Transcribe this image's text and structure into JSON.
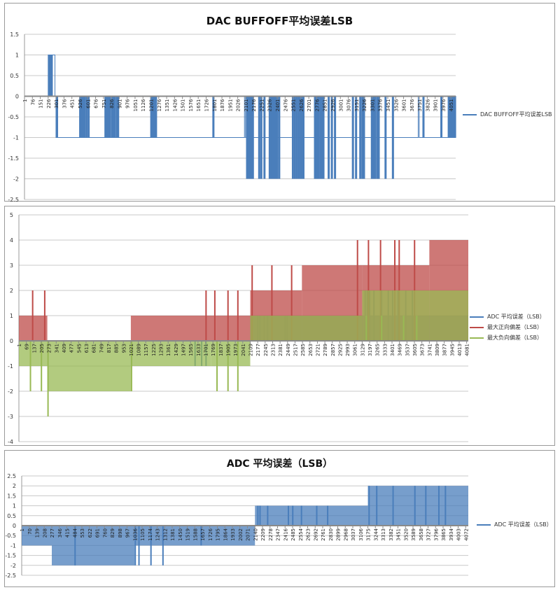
{
  "chart_data": [
    {
      "type": "bar",
      "title": "DAC BUFFOFF平均误差LSB",
      "ylim": [
        -2.5,
        1.5
      ],
      "yticks": [
        -2.5,
        -2,
        -1.5,
        -1,
        -0.5,
        0,
        0.5,
        1,
        1.5
      ],
      "xlim": [
        1,
        4096
      ],
      "xticks": [
        1,
        76,
        151,
        226,
        301,
        376,
        451,
        526,
        601,
        676,
        751,
        826,
        901,
        976,
        1051,
        1126,
        1201,
        1276,
        1351,
        1426,
        1501,
        1576,
        1651,
        1726,
        1801,
        1876,
        1951,
        2026,
        2101,
        2176,
        2251,
        2326,
        2401,
        2476,
        2551,
        2626,
        2701,
        2776,
        2851,
        2926,
        3001,
        3076,
        3151,
        3226,
        3301,
        3376,
        3451,
        3526,
        3601,
        3676,
        3751,
        3826,
        3901,
        3976,
        4051
      ],
      "grid": true,
      "legend_position": "right",
      "series": [
        {
          "name": "DAC BUFFOFF平均误差LSB",
          "color": "#4a7ebb",
          "x": [
            226,
            230,
            240,
            250,
            300,
            520,
            530,
            545,
            560,
            580,
            600,
            760,
            775,
            790,
            800,
            820,
            835,
            850,
            870,
            880,
            1195,
            1210,
            1225,
            1240,
            1785,
            2105,
            2115,
            2130,
            2145,
            2160,
            2220,
            2240,
            2270,
            2320,
            2330,
            2345,
            2360,
            2375,
            2390,
            2410,
            2540,
            2560,
            2580,
            2600,
            2620,
            2640,
            2750,
            2765,
            2780,
            2800,
            2815,
            2830,
            2880,
            2910,
            2940,
            3110,
            3140,
            3180,
            3200,
            3215,
            3290,
            3305,
            3320,
            3340,
            3355,
            3420,
            3490,
            3780,
            3950,
            4020,
            4035,
            4050,
            4065,
            4080
          ],
          "values": [
            1,
            1,
            1,
            1,
            -1,
            -1,
            -1,
            -1,
            -1,
            -1,
            -1,
            -1,
            -1,
            -1,
            -1,
            -1,
            -1,
            -1,
            -1,
            -1,
            -1,
            -1,
            -1,
            -1,
            -1,
            -2,
            -2,
            -2,
            -2,
            -2,
            -2,
            -2,
            -2,
            -2,
            -2,
            -2,
            -2,
            -2,
            -2,
            -2,
            -2,
            -2,
            -2,
            -2,
            -2,
            -2,
            -2,
            -2,
            -2,
            -2,
            -2,
            -2,
            -2,
            -2,
            -2,
            -2,
            -2,
            -2,
            -2,
            -2,
            -2,
            -2,
            -2,
            -2,
            -2,
            -2,
            -2,
            -1,
            -1,
            -1,
            -1,
            -1,
            -1,
            -1
          ],
          "note_levels": [
            {
              "from": 1,
              "to": 225,
              "value": 0
            },
            {
              "from": 226,
              "to": 290,
              "value": 1
            },
            {
              "from": 300,
              "to": 2090,
              "value": -1
            },
            {
              "from": 2100,
              "to": 3740,
              "value": -1
            },
            {
              "from": 3750,
              "to": 4096,
              "value": -1
            }
          ]
        }
      ]
    },
    {
      "type": "bar",
      "title": "",
      "ylim": [
        -4,
        5
      ],
      "yticks": [
        -4,
        -3,
        -2,
        -1,
        0,
        1,
        2,
        3,
        4,
        5
      ],
      "xlim": [
        1,
        4096
      ],
      "xticks": [
        1,
        69,
        137,
        205,
        273,
        341,
        409,
        477,
        545,
        613,
        681,
        749,
        817,
        885,
        953,
        1021,
        1089,
        1157,
        1225,
        1293,
        1361,
        1429,
        1497,
        1565,
        1633,
        1701,
        1769,
        1837,
        1905,
        1973,
        2041,
        2109,
        2177,
        2245,
        2313,
        2381,
        2449,
        2517,
        2585,
        2653,
        2721,
        2789,
        2857,
        2925,
        2993,
        3061,
        3129,
        3197,
        3265,
        3333,
        3401,
        3469,
        3537,
        3605,
        3673,
        3741,
        3809,
        3877,
        3945,
        4013,
        4081
      ],
      "grid": true,
      "legend_position": "right",
      "series": [
        {
          "name": "ADC 平均误差（LSB）",
          "color": "#4a7ebb",
          "segments": [
            [
              1,
              1021,
              0
            ],
            [
              1021,
              2109,
              0
            ],
            [
              2109,
              3129,
              1
            ],
            [
              3129,
              3741,
              1
            ],
            [
              3741,
              4096,
              1
            ]
          ],
          "spikes": [
            [
              1021,
              -1
            ],
            [
              1600,
              -1
            ],
            [
              1660,
              -1
            ],
            [
              1700,
              -1
            ],
            [
              2170,
              1
            ],
            [
              2190,
              1
            ],
            [
              2230,
              1
            ],
            [
              2260,
              1
            ],
            [
              2420,
              1
            ],
            [
              2440,
              1
            ],
            [
              3150,
              2
            ],
            [
              3170,
              2
            ],
            [
              3190,
              2
            ],
            [
              3230,
              2
            ],
            [
              3300,
              2
            ],
            [
              3360,
              2
            ],
            [
              3400,
              2
            ],
            [
              3450,
              2
            ],
            [
              3520,
              2
            ],
            [
              3580,
              2
            ]
          ]
        },
        {
          "name": "最大正向偏差（LSB）",
          "color": "#be4b48",
          "segments": [
            [
              1,
              260,
              1
            ],
            [
              260,
              1021,
              0
            ],
            [
              1021,
              1800,
              1
            ],
            [
              1800,
              2109,
              1
            ],
            [
              2109,
              2580,
              2
            ],
            [
              2580,
              3129,
              3
            ],
            [
              3129,
              3741,
              3
            ],
            [
              3741,
              4096,
              4
            ]
          ],
          "spikes": [
            [
              120,
              2
            ],
            [
              230,
              2
            ],
            [
              1700,
              2
            ],
            [
              1780,
              2
            ],
            [
              1900,
              2
            ],
            [
              1990,
              2
            ],
            [
              2120,
              3
            ],
            [
              2300,
              3
            ],
            [
              2480,
              3
            ],
            [
              3080,
              4
            ],
            [
              3180,
              4
            ],
            [
              3290,
              4
            ],
            [
              3420,
              4
            ],
            [
              3460,
              4
            ],
            [
              3600,
              4
            ]
          ]
        },
        {
          "name": "最大负向偏差（LSB）",
          "color": "#98b954",
          "segments": [
            [
              1,
              260,
              -1
            ],
            [
              260,
              1021,
              -2
            ],
            [
              1021,
              1750,
              -1
            ],
            [
              1750,
              2109,
              -1
            ],
            [
              2109,
              3129,
              1
            ],
            [
              3129,
              3741,
              2
            ],
            [
              3741,
              4096,
              2
            ]
          ],
          "spikes": [
            [
              100,
              -2
            ],
            [
              200,
              -2
            ],
            [
              260,
              -3
            ],
            [
              1021,
              -2
            ],
            [
              1800,
              -2
            ],
            [
              1900,
              -2
            ],
            [
              1990,
              -2
            ],
            [
              2060,
              0
            ],
            [
              2140,
              0
            ],
            [
              2400,
              0
            ],
            [
              3160,
              1
            ],
            [
              3300,
              1
            ],
            [
              3500,
              1
            ],
            [
              3620,
              1
            ]
          ]
        }
      ]
    },
    {
      "type": "bar",
      "title": "ADC 平均误差（LSB）",
      "ylim": [
        -2.5,
        2.5
      ],
      "yticks": [
        -2.5,
        -2,
        -1.5,
        -1,
        -0.5,
        0,
        0.5,
        1,
        1.5,
        2,
        2.5
      ],
      "xlim": [
        1,
        4096
      ],
      "xticks": [
        1,
        70,
        139,
        208,
        277,
        346,
        415,
        484,
        553,
        622,
        691,
        760,
        829,
        898,
        967,
        1036,
        1105,
        1174,
        1243,
        1312,
        1381,
        1450,
        1519,
        1588,
        1657,
        1726,
        1795,
        1864,
        1933,
        2002,
        2071,
        2140,
        2209,
        2278,
        2347,
        2416,
        2485,
        2554,
        2623,
        2692,
        2761,
        2830,
        2899,
        2968,
        3037,
        3106,
        3175,
        3244,
        3313,
        3382,
        3451,
        3520,
        3589,
        3658,
        3727,
        3796,
        3865,
        3934,
        4003,
        4072
      ],
      "grid": true,
      "legend_position": "right",
      "series": [
        {
          "name": "ADC 平均误差（LSB）",
          "color": "#4a7ebb",
          "segments": [
            [
              1,
              277,
              -1
            ],
            [
              277,
              1036,
              -2
            ],
            [
              1036,
              2140,
              -1
            ],
            [
              2140,
              3175,
              1
            ],
            [
              3175,
              4096,
              2
            ]
          ],
          "spikes": [
            [
              484,
              -2
            ],
            [
              1036,
              -2
            ],
            [
              1070,
              -2
            ],
            [
              1180,
              -2
            ],
            [
              1290,
              -2
            ],
            [
              1640,
              -1
            ],
            [
              1700,
              0
            ],
            [
              1760,
              0
            ],
            [
              1830,
              0
            ],
            [
              1900,
              0
            ],
            [
              2030,
              0
            ],
            [
              2160,
              1
            ],
            [
              2180,
              1
            ],
            [
              2250,
              1
            ],
            [
              2440,
              1
            ],
            [
              2480,
              1
            ],
            [
              2560,
              1
            ],
            [
              2700,
              1
            ],
            [
              2800,
              1
            ],
            [
              3180,
              2
            ],
            [
              3250,
              2
            ],
            [
              3400,
              2
            ],
            [
              3600,
              2
            ],
            [
              3700,
              2
            ],
            [
              3820,
              2
            ],
            [
              3880,
              2
            ]
          ]
        }
      ]
    }
  ]
}
